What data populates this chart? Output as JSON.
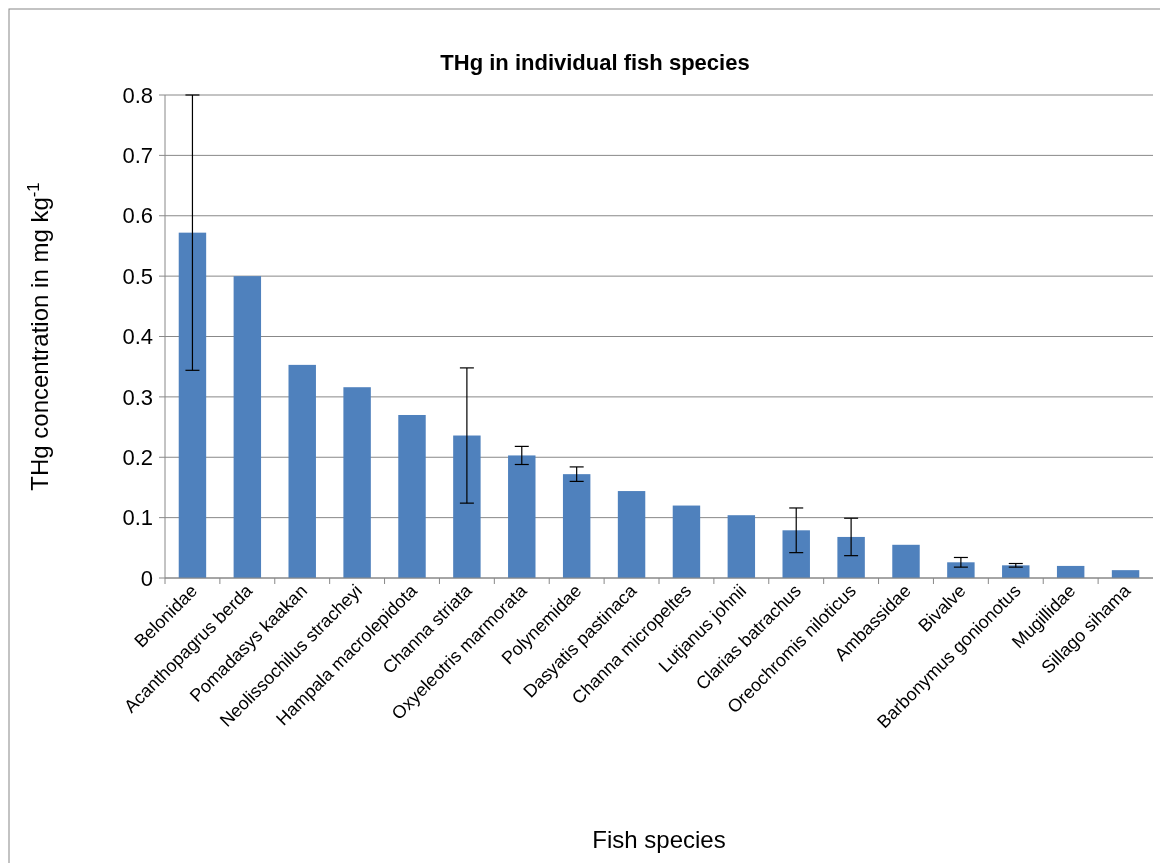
{
  "chart_data": {
    "type": "bar",
    "title": "THg in individual fish species",
    "xlabel": "Fish species",
    "ylabel": "THg concentration in mg kg$^{-1}$",
    "categories": [
      "Belonidae",
      "Acanthopagrus berda",
      "Pomadasys kaakan",
      "Neolissochilus stracheyi",
      "Hampala macrolepidota",
      "Channa striata",
      "Oxyeleotris marmorata",
      "Polynemidae",
      "Dasyatis pastinaca",
      "Channa micropeltes",
      "Lutjanus johnii",
      "Clarias batrachus",
      "Oreochromis niloticus",
      "Ambassidae",
      "Bivalve",
      "Barbonymus gonionotus",
      "Mugillidae",
      "Sillago sihama"
    ],
    "values": [
      0.572,
      0.5,
      0.353,
      0.316,
      0.27,
      0.236,
      0.203,
      0.172,
      0.144,
      0.12,
      0.104,
      0.079,
      0.068,
      0.055,
      0.026,
      0.021,
      0.02,
      0.013
    ],
    "errors": [
      0.228,
      null,
      null,
      null,
      null,
      0.112,
      0.015,
      0.012,
      null,
      null,
      null,
      0.037,
      0.031,
      null,
      0.008,
      0.003,
      null,
      null
    ],
    "color": "#4f81bd",
    "ylim": [
      0,
      0.8
    ],
    "yticks": [
      0,
      0.1,
      0.2,
      0.3,
      0.4,
      0.5,
      0.6,
      0.7,
      0.8
    ],
    "grid": "y"
  }
}
